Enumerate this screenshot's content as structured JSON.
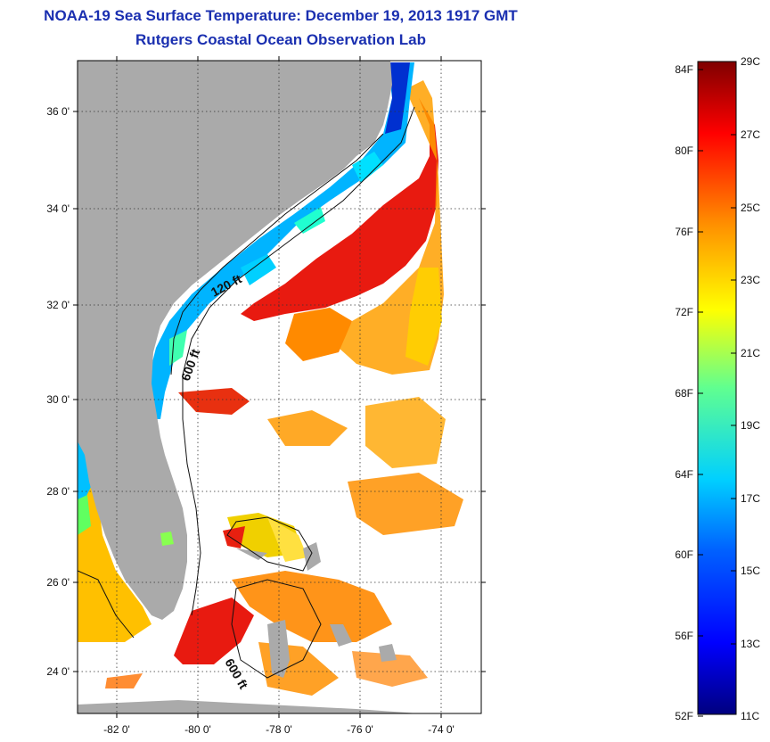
{
  "header": {
    "title": "NOAA-19 Sea Surface Temperature:  December 19, 2013 1917 GMT",
    "subtitle": "Rutgers Coastal Ocean Observation Lab"
  },
  "map": {
    "lat_labels": [
      "36 0'",
      "34 0'",
      "32 0'",
      "30 0'",
      "28 0'",
      "26 0'",
      "24 0'"
    ],
    "lon_labels": [
      "-82 0'",
      "-80 0'",
      "-78 0'",
      "-76 0'",
      "-74 0'"
    ],
    "contour_labels": [
      "120 ft",
      "600 ft",
      "600 ft"
    ],
    "colors": {
      "land": "#aaaaaa",
      "cloud": "#ffffff",
      "gridline": "#333333"
    }
  },
  "colorbar": {
    "fahrenheit_labels": [
      "84F",
      "80F",
      "76F",
      "72F",
      "68F",
      "64F",
      "60F",
      "56F",
      "52F"
    ],
    "celsius_labels": [
      "29C",
      "27C",
      "25C",
      "23C",
      "21C",
      "19C",
      "17C",
      "15C",
      "13C",
      "11C"
    ],
    "range_c": [
      11,
      29
    ],
    "colormap": [
      "#00007f",
      "#0000ff",
      "#0080ff",
      "#00ffff",
      "#80ff80",
      "#ffff00",
      "#ff8000",
      "#ff0000",
      "#7f0000"
    ]
  }
}
